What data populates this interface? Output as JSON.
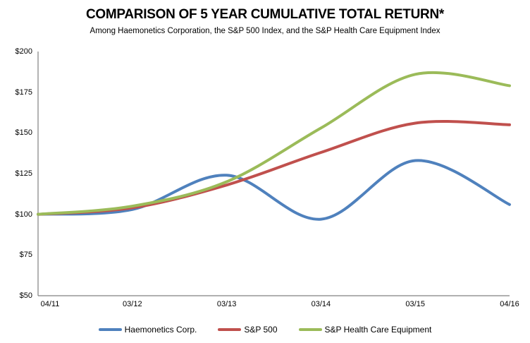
{
  "header": {
    "title": "COMPARISON OF 5 YEAR CUMULATIVE TOTAL RETURN*",
    "subtitle": "Among Haemonetics Corporation, the S&P 500 Index, and the S&P Health Care Equipment Index"
  },
  "chart_data": {
    "type": "line",
    "smoothed": true,
    "title": "COMPARISON OF 5 YEAR CUMULATIVE TOTAL RETURN*",
    "subtitle": "Among Haemonetics Corporation, the S&P 500 Index, and the S&P Health Care Equipment Index",
    "categories": [
      "04/11",
      "03/12",
      "03/13",
      "03/14",
      "03/15",
      "04/16"
    ],
    "series": [
      {
        "name": "Haemonetics Corp.",
        "color": "#4F81BD",
        "values": [
          100,
          103,
          124,
          97,
          133,
          106
        ]
      },
      {
        "name": "S&P 500",
        "color": "#C0504D",
        "values": [
          100,
          104,
          118,
          138,
          156,
          155
        ]
      },
      {
        "name": "S&P Health Care Equipment",
        "color": "#9BBB59",
        "values": [
          100,
          105,
          120,
          153,
          186,
          179
        ]
      }
    ],
    "xlabel": "",
    "ylabel": "",
    "y_ticks": [
      "$200",
      "$175",
      "$150",
      "$125",
      "$100",
      "$75",
      "$50"
    ],
    "y_tick_values": [
      200,
      175,
      150,
      125,
      100,
      75,
      50
    ],
    "ylim": [
      50,
      200
    ],
    "grid": false,
    "legend_position": "bottom",
    "axis_color": "#808080",
    "background_color": "#FFFFFF"
  }
}
